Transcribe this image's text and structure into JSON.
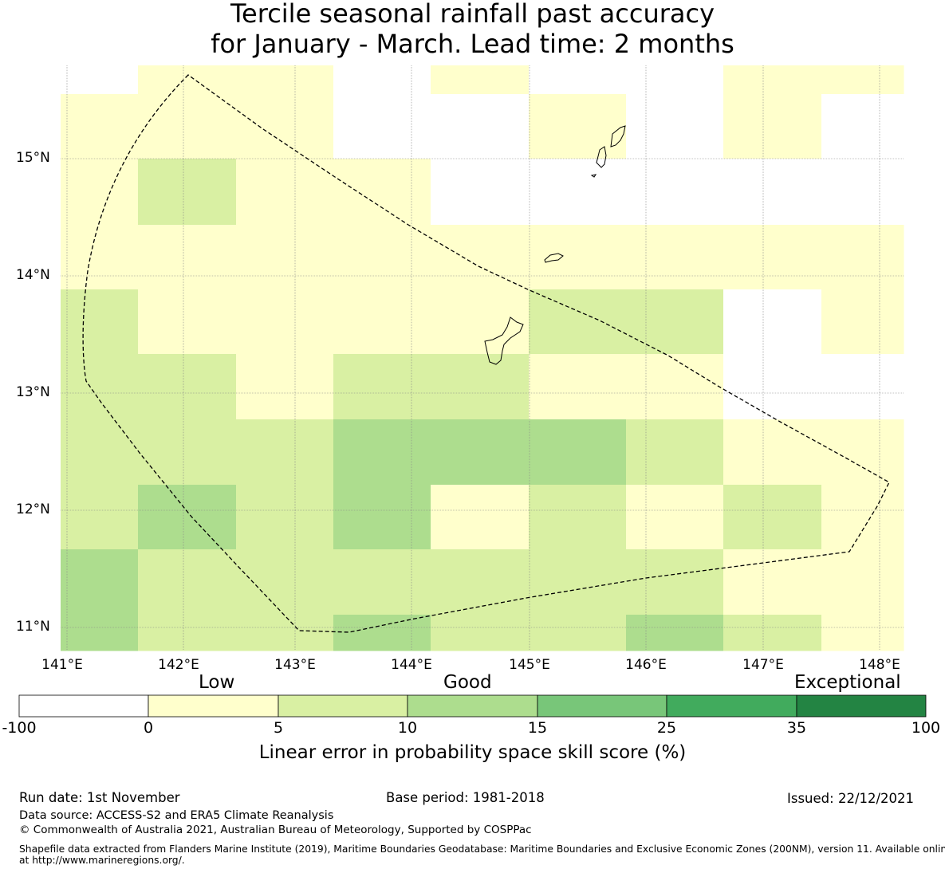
{
  "title": {
    "line1": "Tercile seasonal rainfall past accuracy",
    "line2": "for January - March. Lead time: 2 months"
  },
  "map": {
    "lon_labels": [
      "141°E",
      "142°E",
      "143°E",
      "144°E",
      "145°E",
      "146°E",
      "147°E",
      "148°E"
    ],
    "lat_labels": [
      "15°N",
      "14°N",
      "13°N",
      "12°N",
      "11°N"
    ],
    "colors": [
      "#ffffff",
      "#ffffcc",
      "#d9f0a3",
      "#addd8e",
      "#78c679",
      "#41ab5d",
      "#238443"
    ],
    "grid": [
      [
        0,
        1,
        1,
        0,
        1,
        0,
        0,
        1,
        1
      ],
      [
        1,
        1,
        1,
        0,
        0,
        1,
        0,
        1,
        0
      ],
      [
        1,
        2,
        1,
        1,
        0,
        0,
        0,
        0,
        0
      ],
      [
        1,
        1,
        1,
        1,
        1,
        1,
        1,
        1,
        1
      ],
      [
        2,
        1,
        1,
        1,
        1,
        2,
        2,
        0,
        1
      ],
      [
        2,
        2,
        1,
        2,
        2,
        1,
        1,
        0,
        0
      ],
      [
        2,
        2,
        2,
        3,
        3,
        3,
        2,
        1,
        1
      ],
      [
        2,
        3,
        2,
        3,
        1,
        2,
        1,
        2,
        1
      ],
      [
        3,
        2,
        2,
        2,
        2,
        2,
        2,
        1,
        1
      ],
      [
        3,
        2,
        2,
        3,
        2,
        2,
        3,
        2,
        1
      ]
    ]
  },
  "colorbar": {
    "categories": [
      "Low",
      "Good",
      "Exceptional"
    ],
    "ticks": [
      "-100",
      "0",
      "5",
      "10",
      "15",
      "25",
      "35",
      "100"
    ],
    "label": "Linear error in probability space skill score (%)"
  },
  "footer": {
    "run_date": "Run date: 1st November",
    "base_period": "Base period: 1981-2018",
    "issued": "Issued: 22/12/2021",
    "data_source": "Data source: ACCESS-S2 and ERA5 Climate Reanalysis",
    "copyright": "© Commonwealth of Australia 2021, Australian Bureau of Meteorology, Supported by COSPPac",
    "shapefile_line1": "Shapefile data extracted from Flanders Marine Institute (2019), Maritime Boundaries Geodatabase: Maritime Boundaries and Exclusive Economic Zones (200NM), version 11. Available online",
    "shapefile_line2": "at http://www.marineregions.org/."
  }
}
